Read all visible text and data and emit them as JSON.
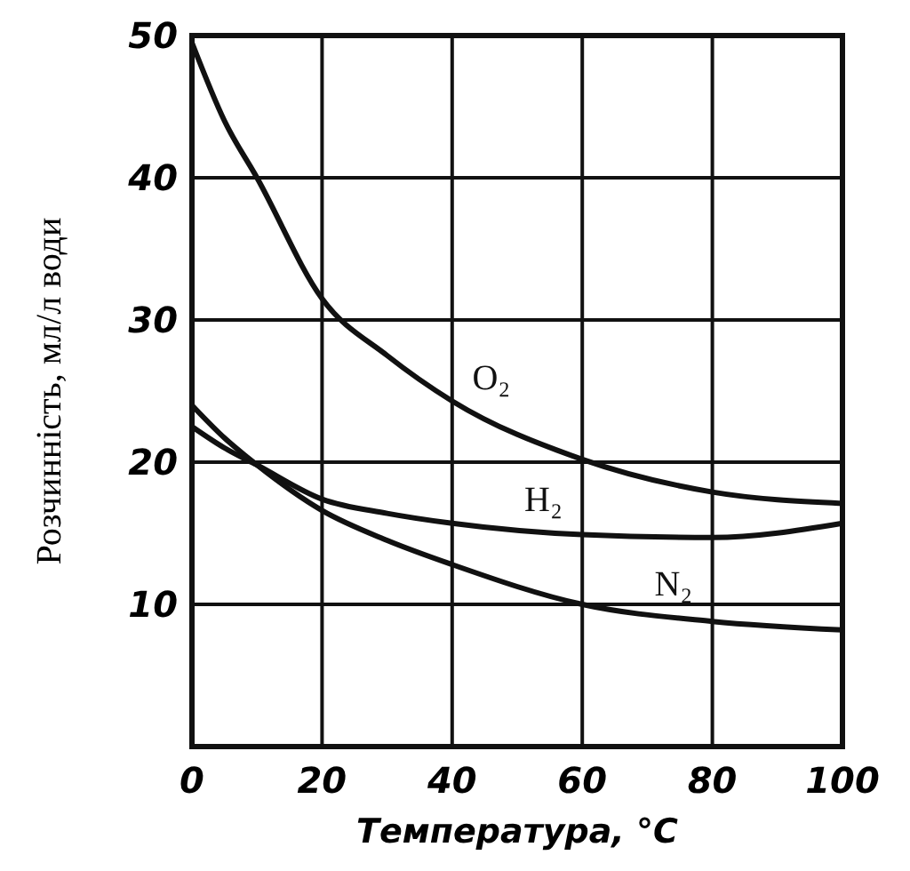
{
  "chart_data": {
    "type": "line",
    "xlabel": "Температура, °C",
    "ylabel": "Розчинність, мл/л води",
    "x": [
      0,
      5,
      10,
      20,
      30,
      40,
      60,
      80,
      100
    ],
    "xlim": [
      0,
      100
    ],
    "ylim": [
      0,
      50
    ],
    "xticks": [
      0,
      20,
      40,
      60,
      80,
      100
    ],
    "yticks": [
      {
        "value": 0,
        "label": null
      },
      10,
      20,
      30,
      40,
      50
    ],
    "grid": true,
    "marker": "none",
    "line_style": "solid",
    "series": [
      {
        "name": "O₂",
        "color": "#111111",
        "values": [
          49.5,
          44,
          40,
          31.5,
          27.5,
          24.3,
          20.2,
          17.9,
          17.1
        ]
      },
      {
        "name": "H₂",
        "color": "#111111",
        "values": [
          22.5,
          21,
          19.8,
          17.4,
          16.4,
          15.7,
          14.9,
          14.7,
          15.7
        ]
      },
      {
        "name": "N₂",
        "color": "#111111",
        "values": [
          24,
          21.7,
          19.8,
          16.6,
          14.5,
          12.8,
          10,
          8.8,
          8.2
        ]
      }
    ]
  }
}
